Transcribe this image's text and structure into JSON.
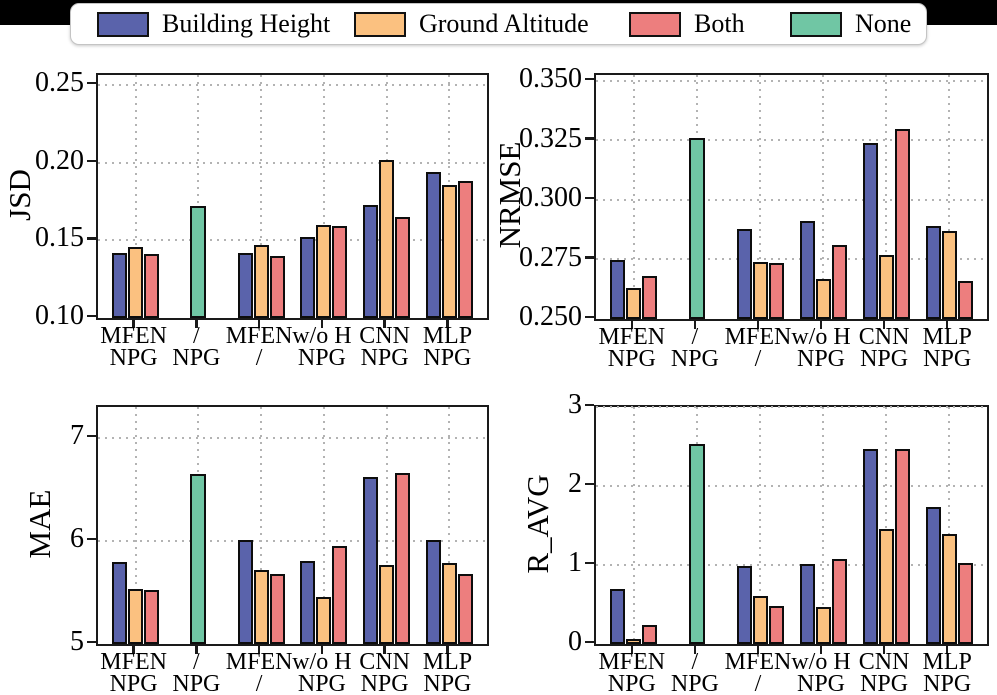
{
  "legend": {
    "items": [
      {
        "label": "Building Height",
        "color": "#5A63AB"
      },
      {
        "label": "Ground Altitude",
        "color": "#FBC180"
      },
      {
        "label": "Both",
        "color": "#ED7E7E"
      },
      {
        "label": "None",
        "color": "#70C6A4"
      }
    ]
  },
  "chart_data": [
    {
      "type": "bar",
      "ylabel": "JSD",
      "ylim": [
        0.1,
        0.2565
      ],
      "ytick_values": [
        0.1,
        0.15,
        0.2,
        0.25
      ],
      "ytick_labels": [
        "0.10",
        "0.15",
        "0.20",
        "0.25"
      ],
      "grid": "dotted, both axes",
      "categories": [
        [
          "MFEN",
          "NPG"
        ],
        [
          "/",
          "NPG"
        ],
        [
          "MFEN",
          "/"
        ],
        [
          "w/o H",
          "NPG"
        ],
        [
          "CNN",
          "NPG"
        ],
        [
          "MLP",
          "NPG"
        ]
      ],
      "series": [
        {
          "name": "Building Height",
          "values": [
            0.142,
            null,
            0.142,
            0.152,
            0.173,
            0.194
          ]
        },
        {
          "name": "Ground Altitude",
          "values": [
            0.146,
            null,
            0.147,
            0.16,
            0.202,
            0.186
          ]
        },
        {
          "name": "Both",
          "values": [
            0.141,
            null,
            0.14,
            0.159,
            0.165,
            0.188
          ]
        },
        {
          "name": "None",
          "values": [
            null,
            0.172,
            null,
            null,
            null,
            null
          ]
        }
      ]
    },
    {
      "type": "bar",
      "ylabel": "NRMSE",
      "ylim": [
        0.25,
        0.3525
      ],
      "ytick_values": [
        0.25,
        0.275,
        0.3,
        0.325,
        0.35
      ],
      "ytick_labels": [
        "0.250",
        "0.275",
        "0.300",
        "0.325",
        "0.350"
      ],
      "grid": "dotted, both axes",
      "categories": [
        [
          "MFEN",
          "NPG"
        ],
        [
          "/",
          "NPG"
        ],
        [
          "MFEN",
          "/"
        ],
        [
          "w/o H",
          "NPG"
        ],
        [
          "CNN",
          "NPG"
        ],
        [
          "MLP",
          "NPG"
        ]
      ],
      "series": [
        {
          "name": "Building Height",
          "values": [
            0.275,
            null,
            0.288,
            0.291,
            0.324,
            0.289
          ]
        },
        {
          "name": "Ground Altitude",
          "values": [
            0.263,
            null,
            0.274,
            0.267,
            0.277,
            0.287
          ]
        },
        {
          "name": "Both",
          "values": [
            0.268,
            null,
            0.2735,
            0.281,
            0.33,
            0.266
          ]
        },
        {
          "name": "None",
          "values": [
            null,
            0.326,
            null,
            null,
            null,
            null
          ]
        }
      ]
    },
    {
      "type": "bar",
      "ylabel": "MAE",
      "ylim": [
        5,
        7.3
      ],
      "ytick_values": [
        5,
        6,
        7
      ],
      "ytick_labels": [
        "5",
        "6",
        "7"
      ],
      "grid": "dotted, both axes",
      "categories": [
        [
          "MFEN",
          "NPG"
        ],
        [
          "/",
          "NPG"
        ],
        [
          "MFEN",
          "/"
        ],
        [
          "w/o H",
          "NPG"
        ],
        [
          "CNN",
          "NPG"
        ],
        [
          "MLP",
          "NPG"
        ]
      ],
      "series": [
        {
          "name": "Building Height",
          "values": [
            5.8,
            null,
            6.01,
            5.81,
            6.62,
            6.01
          ]
        },
        {
          "name": "Ground Altitude",
          "values": [
            5.53,
            null,
            5.72,
            5.46,
            5.77,
            5.79
          ]
        },
        {
          "name": "Both",
          "values": [
            5.52,
            null,
            5.68,
            5.95,
            6.66,
            5.68
          ]
        },
        {
          "name": "None",
          "values": [
            null,
            6.65,
            null,
            null,
            null,
            null
          ]
        }
      ]
    },
    {
      "type": "bar",
      "ylabel": "R_AVG",
      "ylim": [
        0,
        3
      ],
      "ytick_values": [
        0,
        1,
        2,
        3
      ],
      "ytick_labels": [
        "0",
        "1",
        "2",
        "3"
      ],
      "grid": "dotted, both axes",
      "categories": [
        [
          "MFEN",
          "NPG"
        ],
        [
          "/",
          "NPG"
        ],
        [
          "MFEN",
          "/"
        ],
        [
          "w/o H",
          "NPG"
        ],
        [
          "CNN",
          "NPG"
        ],
        [
          "MLP",
          "NPG"
        ]
      ],
      "series": [
        {
          "name": "Building Height",
          "values": [
            0.7,
            null,
            0.99,
            1.01,
            2.47,
            1.74
          ]
        },
        {
          "name": "Ground Altitude",
          "values": [
            0.07,
            null,
            0.61,
            0.47,
            1.46,
            1.39
          ]
        },
        {
          "name": "Both",
          "values": [
            0.24,
            null,
            0.48,
            1.08,
            2.47,
            1.03
          ]
        },
        {
          "name": "None",
          "values": [
            null,
            2.53,
            null,
            null,
            null,
            null
          ]
        }
      ]
    }
  ]
}
